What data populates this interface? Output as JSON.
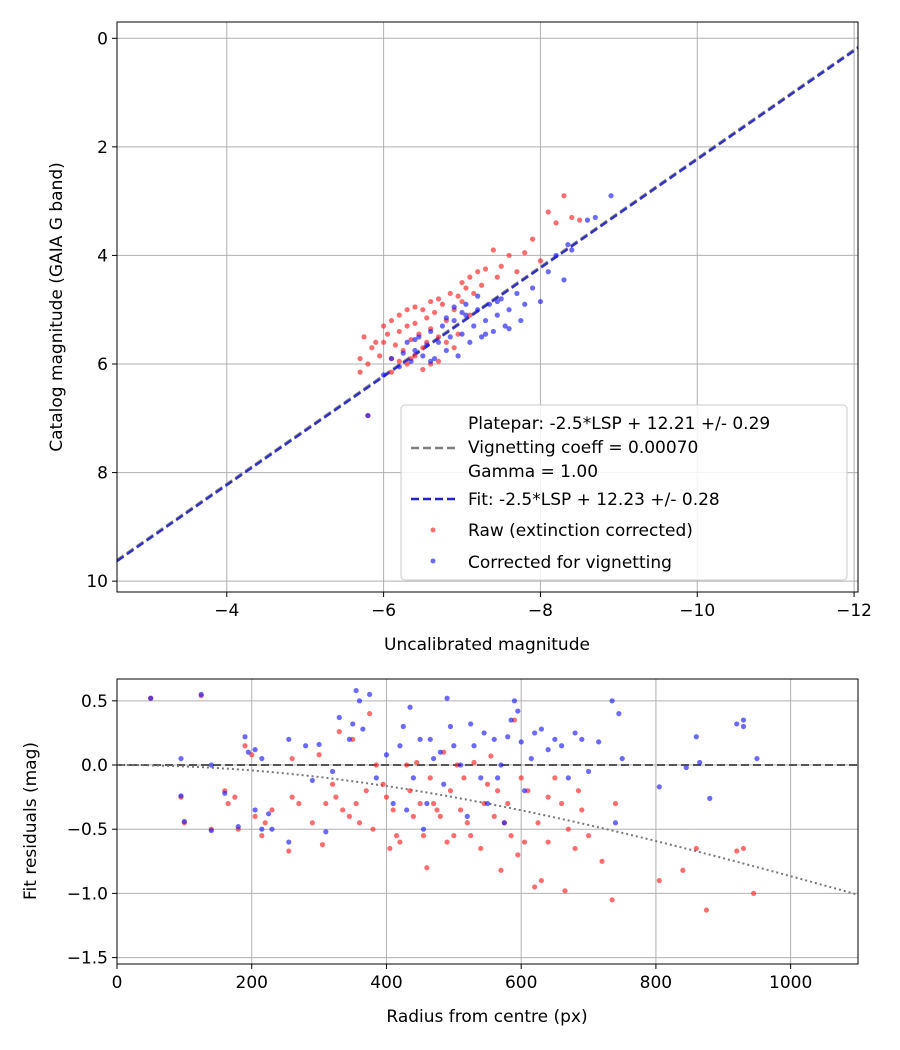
{
  "chart_data": [
    {
      "type": "scatter",
      "xlabel": "Uncalibrated magnitude",
      "ylabel": "Catalog magnitude (GAIA G band)",
      "xlim": [
        -2.6,
        -12.05
      ],
      "ylim": [
        10.2,
        -0.3
      ],
      "x_inverted": true,
      "y_inverted": true,
      "grid": true,
      "xticks": [
        -4,
        -6,
        -8,
        -10,
        -12
      ],
      "xtick_labels": [
        "−4",
        "−6",
        "−8",
        "−10",
        "−12"
      ],
      "yticks": [
        0,
        2,
        4,
        6,
        8,
        10
      ],
      "ytick_labels": [
        "0",
        "2",
        "4",
        "6",
        "8",
        "10"
      ],
      "legend_position": "lower-right",
      "legend": {
        "platepar_line1": "Platepar: -2.5*LSP + 12.21 +/- 0.29",
        "platepar_line2": "Vignetting coeff = 0.00070",
        "platepar_line3": "Gamma = 1.00",
        "fit": "Fit: -2.5*LSP + 12.23 +/- 0.28",
        "raw": "Raw (extinction corrected)",
        "corrected": "Corrected for vignetting"
      },
      "lines": [
        {
          "name": "platepar",
          "style": "dashed",
          "color": "#7f7f7f",
          "slope": 1.0,
          "intercept": 12.21
        },
        {
          "name": "fit",
          "style": "dashed",
          "color": "#2222cc",
          "slope": 1.0,
          "intercept": 12.23
        }
      ],
      "colors": {
        "raw": "#ff2020",
        "corrected": "#1a1aff"
      },
      "raw_points": [
        [
          -5.7,
          5.9
        ],
        [
          -5.75,
          5.5
        ],
        [
          -5.8,
          6.0
        ],
        [
          -5.85,
          5.7
        ],
        [
          -5.9,
          5.6
        ],
        [
          -5.95,
          5.85
        ],
        [
          -6.0,
          5.3
        ],
        [
          -6.0,
          5.6
        ],
        [
          -6.05,
          5.45
        ],
        [
          -6.1,
          5.9
        ],
        [
          -6.1,
          5.2
        ],
        [
          -6.15,
          5.65
        ],
        [
          -6.2,
          5.1
        ],
        [
          -6.2,
          5.4
        ],
        [
          -6.25,
          5.75
        ],
        [
          -6.3,
          5.0
        ],
        [
          -6.3,
          5.3
        ],
        [
          -6.35,
          5.55
        ],
        [
          -6.4,
          4.95
        ],
        [
          -6.4,
          5.25
        ],
        [
          -6.45,
          5.45
        ],
        [
          -6.5,
          5.0
        ],
        [
          -6.5,
          5.7
        ],
        [
          -6.55,
          5.15
        ],
        [
          -6.6,
          4.85
        ],
        [
          -6.6,
          5.35
        ],
        [
          -6.65,
          5.05
        ],
        [
          -6.7,
          4.8
        ],
        [
          -6.7,
          5.5
        ],
        [
          -6.75,
          4.9
        ],
        [
          -6.8,
          5.2
        ],
        [
          -6.85,
          4.7
        ],
        [
          -6.9,
          5.0
        ],
        [
          -6.95,
          4.75
        ],
        [
          -7.0,
          4.5
        ],
        [
          -7.0,
          4.85
        ],
        [
          -7.05,
          4.6
        ],
        [
          -7.1,
          4.4
        ],
        [
          -7.15,
          4.7
        ],
        [
          -7.2,
          4.3
        ],
        [
          -7.25,
          4.55
        ],
        [
          -7.3,
          4.25
        ],
        [
          -7.4,
          3.9
        ],
        [
          -7.45,
          4.4
        ],
        [
          -7.5,
          4.2
        ],
        [
          -7.6,
          4.0
        ],
        [
          -7.7,
          4.3
        ],
        [
          -7.8,
          3.95
        ],
        [
          -7.9,
          3.7
        ],
        [
          -8.0,
          4.1
        ],
        [
          -8.1,
          3.2
        ],
        [
          -8.2,
          3.4
        ],
        [
          -8.3,
          2.9
        ],
        [
          -8.4,
          3.3
        ],
        [
          -8.5,
          3.35
        ],
        [
          -6.3,
          6.0
        ],
        [
          -6.5,
          6.1
        ],
        [
          -6.1,
          6.15
        ],
        [
          -6.7,
          5.95
        ],
        [
          -6.9,
          5.7
        ],
        [
          -5.7,
          6.15
        ],
        [
          -5.8,
          6.95
        ],
        [
          -6.2,
          5.95
        ],
        [
          -6.6,
          6.0
        ],
        [
          -6.4,
          5.85
        ],
        [
          -6.8,
          5.6
        ],
        [
          -7.1,
          5.1
        ],
        [
          -6.95,
          5.45
        ],
        [
          -6.55,
          5.6
        ],
        [
          -6.35,
          5.9
        ]
      ],
      "corrected_points": [
        [
          -5.8,
          6.95
        ],
        [
          -6.0,
          6.2
        ],
        [
          -6.1,
          5.9
        ],
        [
          -6.2,
          6.05
        ],
        [
          -6.25,
          5.8
        ],
        [
          -6.3,
          5.6
        ],
        [
          -6.35,
          5.95
        ],
        [
          -6.4,
          5.75
        ],
        [
          -6.45,
          5.5
        ],
        [
          -6.5,
          5.85
        ],
        [
          -6.55,
          5.65
        ],
        [
          -6.6,
          5.4
        ],
        [
          -6.65,
          5.9
        ],
        [
          -6.7,
          5.6
        ],
        [
          -6.75,
          5.3
        ],
        [
          -6.8,
          5.75
        ],
        [
          -6.85,
          5.5
        ],
        [
          -6.9,
          5.2
        ],
        [
          -6.95,
          5.85
        ],
        [
          -7.0,
          5.45
        ],
        [
          -7.05,
          5.1
        ],
        [
          -7.1,
          5.6
        ],
        [
          -7.15,
          5.3
        ],
        [
          -7.2,
          5.0
        ],
        [
          -7.25,
          5.5
        ],
        [
          -7.3,
          5.2
        ],
        [
          -7.35,
          4.9
        ],
        [
          -7.4,
          5.4
        ],
        [
          -7.45,
          5.1
        ],
        [
          -7.5,
          4.8
        ],
        [
          -7.55,
          5.3
        ],
        [
          -7.6,
          5.0
        ],
        [
          -7.7,
          4.7
        ],
        [
          -7.75,
          5.2
        ],
        [
          -7.8,
          4.9
        ],
        [
          -7.9,
          4.6
        ],
        [
          -8.0,
          4.85
        ],
        [
          -8.1,
          4.3
        ],
        [
          -8.2,
          4.0
        ],
        [
          -8.3,
          4.45
        ],
        [
          -8.35,
          3.8
        ],
        [
          -8.4,
          3.9
        ],
        [
          -8.6,
          3.35
        ],
        [
          -8.7,
          3.3
        ],
        [
          -8.9,
          2.9
        ],
        [
          -7.0,
          5.05
        ],
        [
          -6.9,
          4.95
        ],
        [
          -7.3,
          5.45
        ],
        [
          -6.6,
          5.95
        ],
        [
          -6.4,
          5.55
        ],
        [
          -7.6,
          5.35
        ],
        [
          -7.2,
          4.75
        ],
        [
          -6.8,
          5.15
        ],
        [
          -7.05,
          4.9
        ],
        [
          -7.45,
          4.85
        ]
      ]
    },
    {
      "type": "scatter",
      "xlabel": "Radius from centre (px)",
      "ylabel": "Fit residuals (mag)",
      "xlim": [
        0,
        1100
      ],
      "ylim": [
        -1.55,
        0.67
      ],
      "grid": true,
      "xticks": [
        0,
        200,
        400,
        600,
        800,
        1000
      ],
      "xtick_labels": [
        "0",
        "200",
        "400",
        "600",
        "800",
        "1000"
      ],
      "yticks": [
        0.5,
        0.0,
        -0.5,
        -1.0,
        -1.5
      ],
      "ytick_labels": [
        "0.5",
        "0.0",
        "−0.5",
        "−1.0",
        "−1.5"
      ],
      "zero_line": {
        "y": 0.0,
        "style": "dashed",
        "color": "#555555"
      },
      "vignetting_curve": {
        "coeff": 0.0007,
        "style": "dotted",
        "color": "#777777"
      },
      "raw_points": [
        [
          50,
          0.52
        ],
        [
          95,
          -0.25
        ],
        [
          100,
          -0.45
        ],
        [
          125,
          0.54
        ],
        [
          140,
          -0.5
        ],
        [
          160,
          -0.2
        ],
        [
          165,
          -0.3
        ],
        [
          175,
          -0.25
        ],
        [
          180,
          -0.5
        ],
        [
          190,
          0.15
        ],
        [
          200,
          0.08
        ],
        [
          205,
          -0.4
        ],
        [
          215,
          -0.55
        ],
        [
          220,
          -0.45
        ],
        [
          230,
          -0.35
        ],
        [
          255,
          -0.67
        ],
        [
          260,
          0.05
        ],
        [
          270,
          -0.3
        ],
        [
          290,
          -0.45
        ],
        [
          300,
          0.08
        ],
        [
          305,
          -0.62
        ],
        [
          310,
          -0.3
        ],
        [
          320,
          -0.15
        ],
        [
          325,
          -0.25
        ],
        [
          330,
          0.26
        ],
        [
          335,
          -0.35
        ],
        [
          345,
          -0.4
        ],
        [
          350,
          0.2
        ],
        [
          355,
          -0.3
        ],
        [
          360,
          -0.45
        ],
        [
          370,
          -0.2
        ],
        [
          375,
          0.4
        ],
        [
          380,
          -0.5
        ],
        [
          385,
          0.0
        ],
        [
          395,
          -0.15
        ],
        [
          400,
          -0.25
        ],
        [
          405,
          -0.65
        ],
        [
          410,
          -0.35
        ],
        [
          415,
          -0.55
        ],
        [
          420,
          -0.6
        ],
        [
          430,
          0.0
        ],
        [
          435,
          -0.2
        ],
        [
          440,
          -0.4
        ],
        [
          445,
          0.02
        ],
        [
          450,
          -0.3
        ],
        [
          455,
          -0.55
        ],
        [
          460,
          -0.8
        ],
        [
          465,
          -0.1
        ],
        [
          470,
          -0.3
        ],
        [
          480,
          -0.4
        ],
        [
          485,
          0.1
        ],
        [
          490,
          -0.6
        ],
        [
          495,
          -0.2
        ],
        [
          500,
          -0.55
        ],
        [
          505,
          0.0
        ],
        [
          510,
          -0.35
        ],
        [
          515,
          -0.1
        ],
        [
          520,
          -0.45
        ],
        [
          525,
          -0.55
        ],
        [
          530,
          0.02
        ],
        [
          540,
          -0.65
        ],
        [
          545,
          -0.3
        ],
        [
          550,
          -0.15
        ],
        [
          555,
          0.07
        ],
        [
          560,
          -0.4
        ],
        [
          565,
          -0.2
        ],
        [
          570,
          -0.82
        ],
        [
          575,
          -0.45
        ],
        [
          580,
          -0.3
        ],
        [
          585,
          -0.55
        ],
        [
          590,
          0.35
        ],
        [
          595,
          -0.7
        ],
        [
          600,
          -0.1
        ],
        [
          605,
          -0.6
        ],
        [
          610,
          -0.2
        ],
        [
          620,
          -0.95
        ],
        [
          625,
          -0.45
        ],
        [
          630,
          -0.9
        ],
        [
          640,
          -0.25
        ],
        [
          650,
          -0.1
        ],
        [
          660,
          -0.3
        ],
        [
          665,
          -0.98
        ],
        [
          670,
          -0.5
        ],
        [
          680,
          -0.65
        ],
        [
          685,
          -0.2
        ],
        [
          690,
          -0.35
        ],
        [
          700,
          -0.55
        ],
        [
          720,
          -0.75
        ],
        [
          735,
          -1.05
        ],
        [
          740,
          -0.3
        ],
        [
          805,
          -0.9
        ],
        [
          840,
          -0.82
        ],
        [
          860,
          -0.65
        ],
        [
          875,
          -1.13
        ],
        [
          920,
          -0.67
        ],
        [
          930,
          -0.65
        ],
        [
          945,
          -1.0
        ],
        [
          260,
          -0.25
        ],
        [
          475,
          -0.35
        ],
        [
          640,
          -0.6
        ]
      ],
      "corrected_points": [
        [
          50,
          0.52
        ],
        [
          95,
          0.05
        ],
        [
          95,
          -0.24
        ],
        [
          100,
          -0.44
        ],
        [
          125,
          0.55
        ],
        [
          140,
          0.0
        ],
        [
          140,
          -0.51
        ],
        [
          160,
          -0.22
        ],
        [
          180,
          -0.48
        ],
        [
          190,
          0.22
        ],
        [
          195,
          0.1
        ],
        [
          205,
          0.12
        ],
        [
          205,
          -0.35
        ],
        [
          215,
          -0.5
        ],
        [
          215,
          0.05
        ],
        [
          225,
          -0.38
        ],
        [
          230,
          -0.5
        ],
        [
          255,
          0.2
        ],
        [
          255,
          -0.6
        ],
        [
          280,
          0.15
        ],
        [
          290,
          -0.12
        ],
        [
          300,
          0.16
        ],
        [
          310,
          -0.52
        ],
        [
          320,
          -0.05
        ],
        [
          330,
          0.37
        ],
        [
          345,
          0.2
        ],
        [
          350,
          0.32
        ],
        [
          355,
          0.58
        ],
        [
          360,
          0.5
        ],
        [
          365,
          0.28
        ],
        [
          375,
          0.55
        ],
        [
          385,
          -0.1
        ],
        [
          400,
          0.08
        ],
        [
          410,
          -0.3
        ],
        [
          420,
          0.15
        ],
        [
          425,
          0.3
        ],
        [
          430,
          -0.35
        ],
        [
          435,
          0.45
        ],
        [
          440,
          -0.1
        ],
        [
          450,
          0.2
        ],
        [
          455,
          -0.5
        ],
        [
          460,
          -0.3
        ],
        [
          465,
          0.2
        ],
        [
          470,
          0.05
        ],
        [
          480,
          0.1
        ],
        [
          485,
          -0.15
        ],
        [
          490,
          0.52
        ],
        [
          495,
          0.3
        ],
        [
          500,
          0.15
        ],
        [
          510,
          0.0
        ],
        [
          520,
          -0.4
        ],
        [
          525,
          0.32
        ],
        [
          530,
          0.15
        ],
        [
          540,
          -0.1
        ],
        [
          545,
          0.25
        ],
        [
          550,
          -0.3
        ],
        [
          560,
          0.2
        ],
        [
          565,
          -0.1
        ],
        [
          570,
          0.0
        ],
        [
          575,
          -0.45
        ],
        [
          580,
          0.22
        ],
        [
          585,
          0.35
        ],
        [
          590,
          0.5
        ],
        [
          595,
          0.42
        ],
        [
          600,
          0.18
        ],
        [
          605,
          -0.2
        ],
        [
          615,
          0.05
        ],
        [
          620,
          0.25
        ],
        [
          630,
          0.28
        ],
        [
          640,
          0.12
        ],
        [
          650,
          0.2
        ],
        [
          660,
          0.15
        ],
        [
          670,
          -0.1
        ],
        [
          680,
          0.25
        ],
        [
          690,
          0.2
        ],
        [
          700,
          -0.05
        ],
        [
          715,
          0.18
        ],
        [
          735,
          0.5
        ],
        [
          740,
          -0.45
        ],
        [
          750,
          0.05
        ],
        [
          745,
          0.4
        ],
        [
          805,
          -0.17
        ],
        [
          845,
          -0.02
        ],
        [
          860,
          0.22
        ],
        [
          865,
          0.02
        ],
        [
          880,
          -0.26
        ],
        [
          920,
          0.32
        ],
        [
          930,
          0.35
        ],
        [
          930,
          0.3
        ],
        [
          950,
          0.05
        ]
      ]
    }
  ]
}
